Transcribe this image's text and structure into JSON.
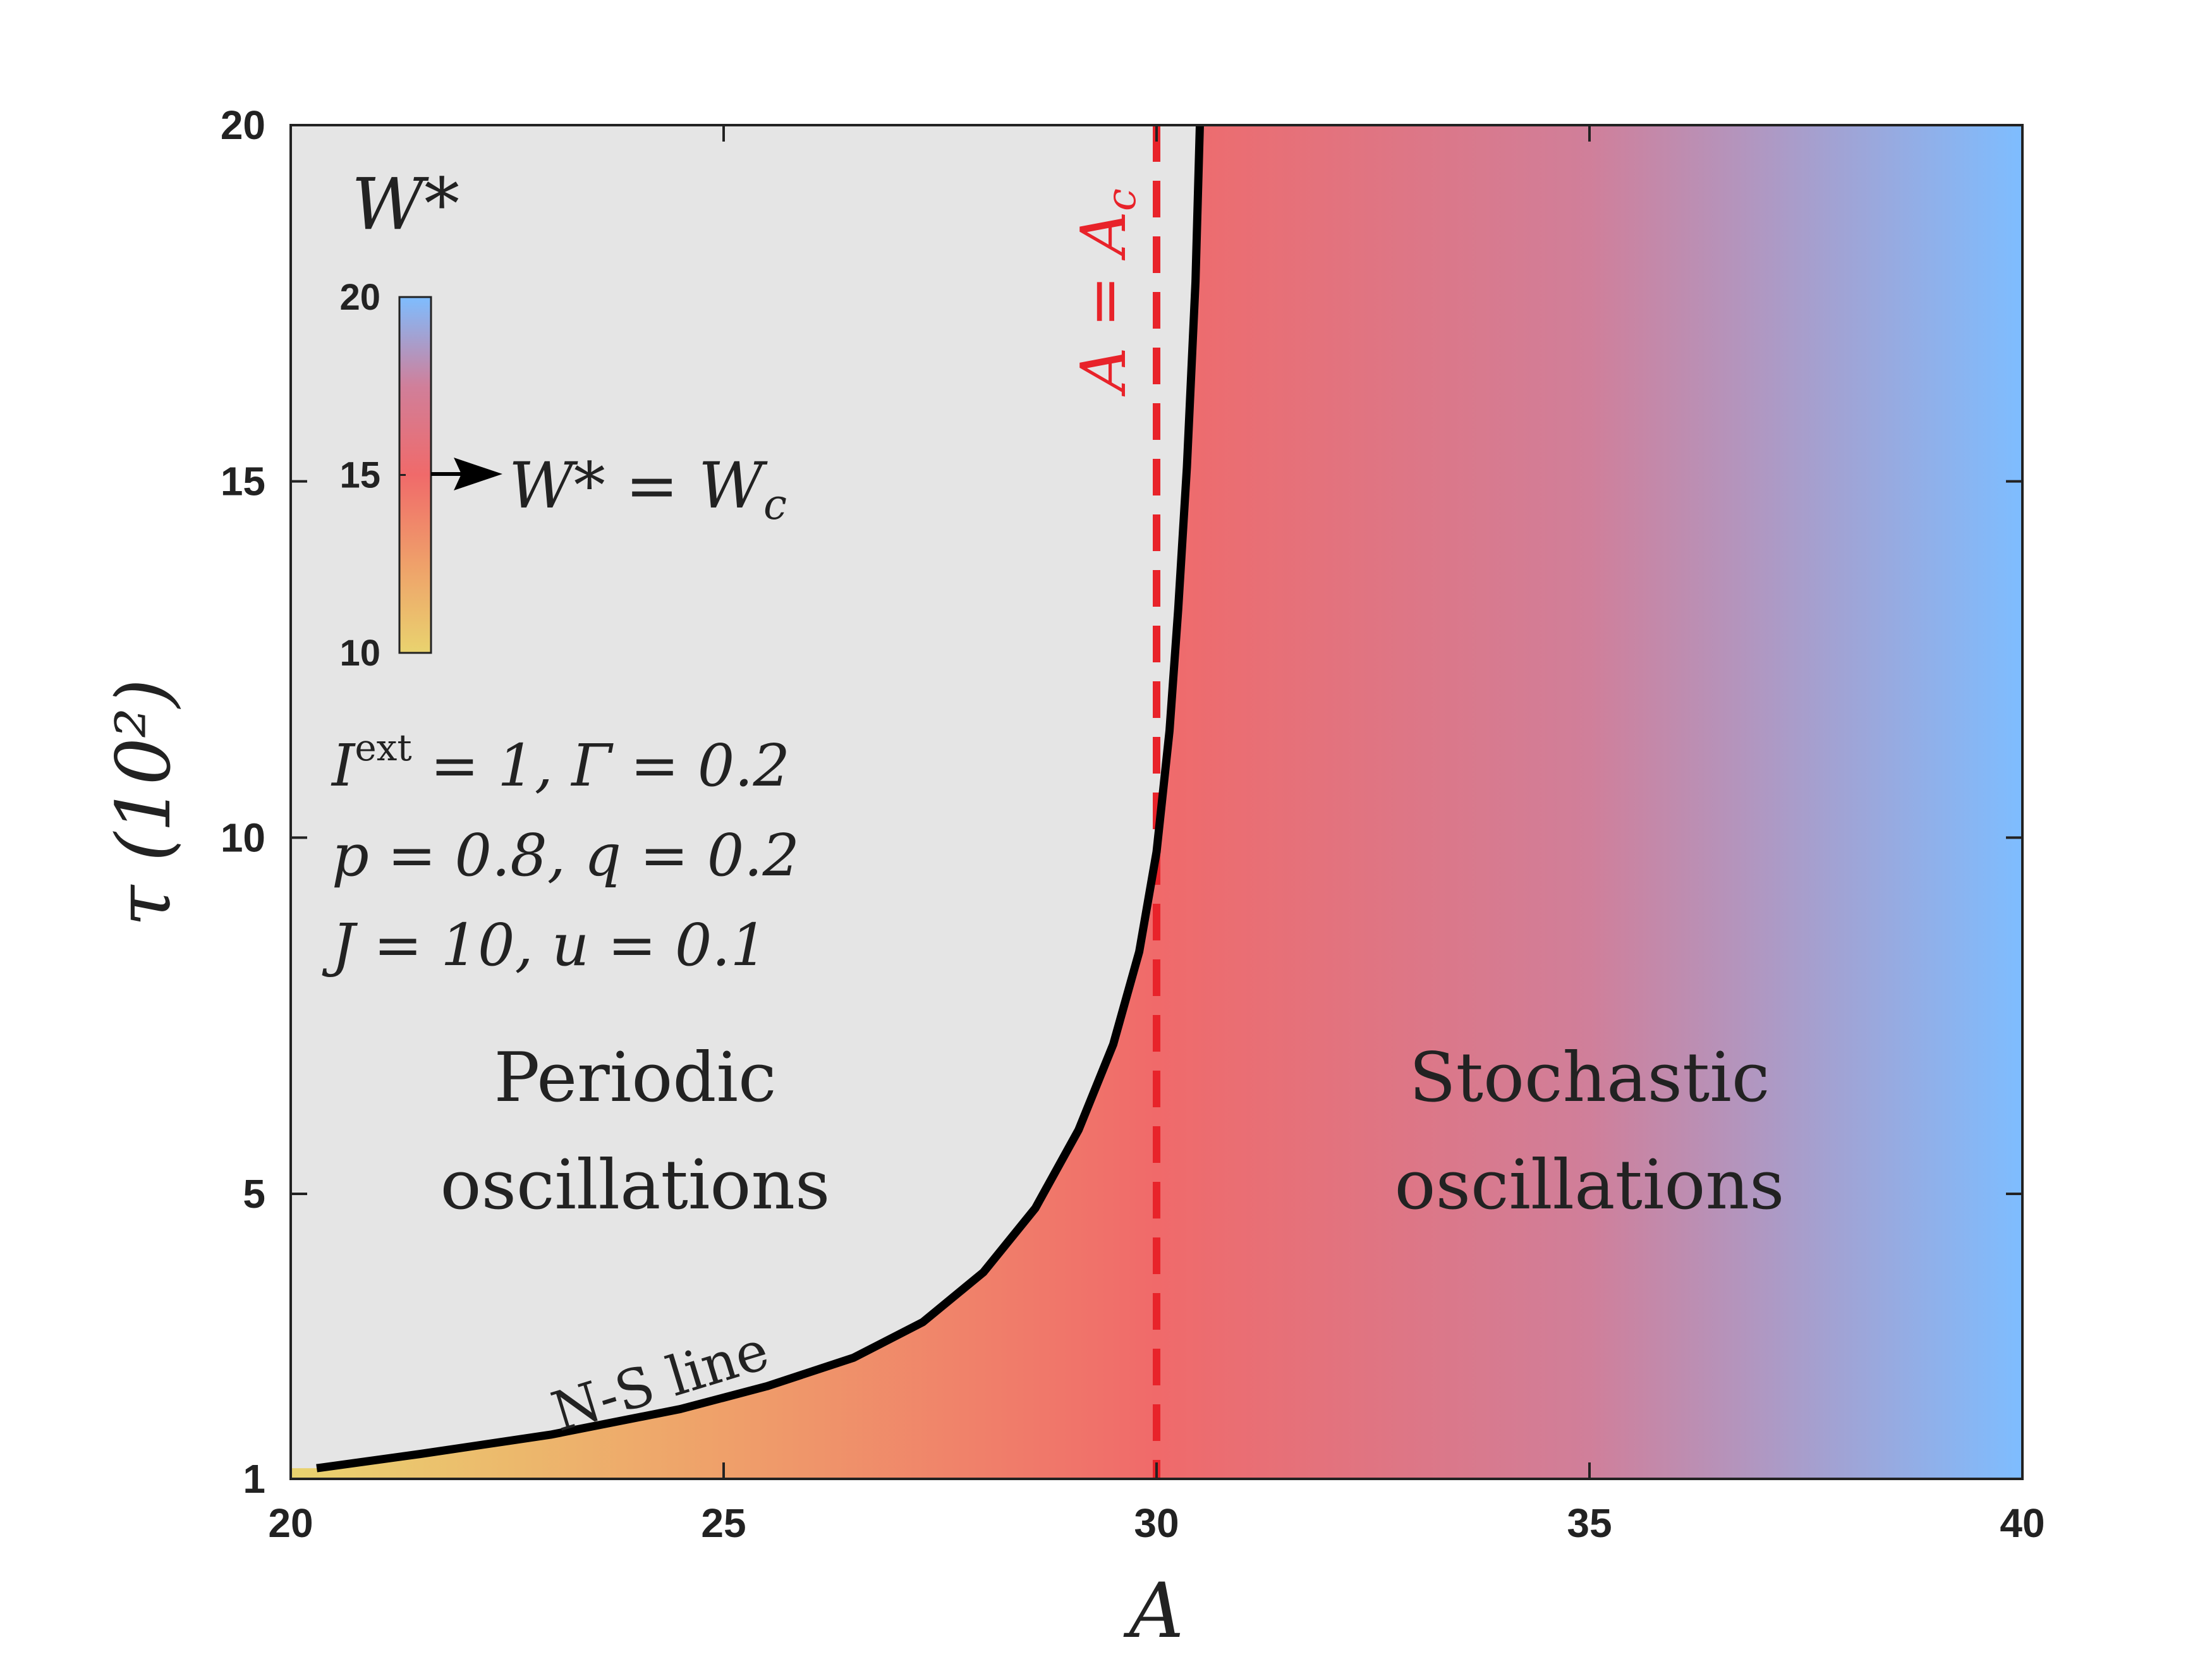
{
  "chart_data": {
    "type": "heatmap",
    "xlabel": "A",
    "ylabel": "τ  (10²)",
    "xlim": [
      20,
      40
    ],
    "ylim": [
      1,
      20
    ],
    "xticks": [
      "20",
      "25",
      "30",
      "35",
      "40"
    ],
    "yticks": [
      "1",
      "5",
      "10",
      "15",
      "20"
    ],
    "grid": false,
    "colorbar": {
      "title": "W*",
      "range": [
        10,
        20
      ],
      "ticks": [
        "10",
        "15",
        "20"
      ],
      "colors": [
        "#E9D36F",
        "#EFA06A",
        "#F06A6A",
        "#D07F9A",
        "#7EBDFF"
      ],
      "marker_value": 15,
      "marker_label": "W* = W",
      "marker_label_sub": "c",
      "position": "top-left"
    },
    "field": {
      "variable": "W*",
      "x_start": 20,
      "x_end": 40,
      "value_at_x_start": 10,
      "value_at_x_end": 20,
      "critical_value": 15,
      "critical_x": 30,
      "gray_region_color": "#E5E5E5"
    },
    "ns_line": {
      "label": "N-S line",
      "x": [
        20.3,
        21.5,
        23,
        24.5,
        25.5,
        26.5,
        27.3,
        28,
        28.6,
        29.1,
        29.5,
        29.8,
        30.0,
        30.15,
        30.25,
        30.35,
        30.45,
        30.5
      ],
      "y": [
        1.15,
        1.35,
        1.62,
        1.98,
        2.3,
        2.7,
        3.2,
        3.9,
        4.8,
        5.9,
        7.1,
        8.4,
        9.8,
        11.5,
        13.2,
        15.2,
        17.8,
        20
      ]
    },
    "critical_line": {
      "label": "A = A",
      "label_sub": "c",
      "x": 30,
      "color": "#E8232A",
      "style": "dashed"
    },
    "parameters": {
      "line1_a_base": "I",
      "line1_a_sup": "ext",
      "line1_a_tail": " = 1, ",
      "line1_b": "Γ = 0.2",
      "line2": "p = 0.8, q = 0.2",
      "line3": "J = 10, u = 0.1"
    },
    "regions": {
      "left": [
        "Periodic",
        "oscillations"
      ],
      "right": [
        "Stochastic",
        "oscillations"
      ]
    }
  }
}
